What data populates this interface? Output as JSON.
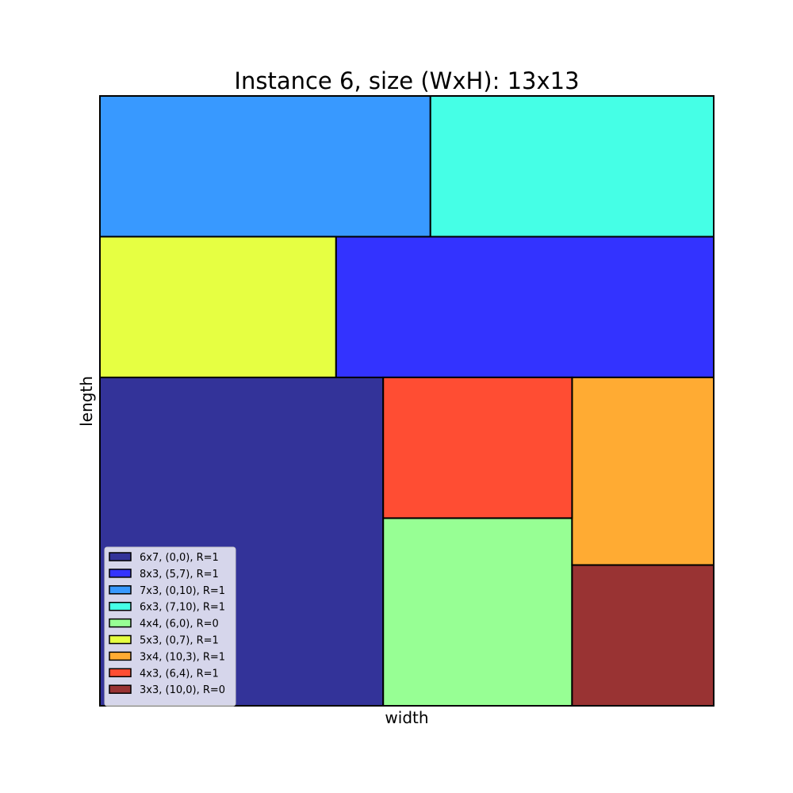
{
  "chart_data": {
    "type": "packing",
    "title": "Instance 6, size (WxH): 13x13",
    "xlabel": "width",
    "ylabel": "length",
    "xlim": [
      0,
      13
    ],
    "ylim": [
      0,
      13
    ],
    "grid": false,
    "legend_position": "lower-left",
    "rectangles": [
      {
        "label": "6x7, (0,0), R=1",
        "x": 0,
        "y": 0,
        "w": 6,
        "h": 7,
        "color": "#333399"
      },
      {
        "label": "8x3, (5,7), R=1",
        "x": 5,
        "y": 7,
        "w": 8,
        "h": 3,
        "color": "#3333ff"
      },
      {
        "label": "7x3, (0,10), R=1",
        "x": 0,
        "y": 10,
        "w": 7,
        "h": 3,
        "color": "#3899ff"
      },
      {
        "label": "6x3, (7,10), R=1",
        "x": 7,
        "y": 10,
        "w": 6,
        "h": 3,
        "color": "#45ffe6"
      },
      {
        "label": "4x4, (6,0), R=0",
        "x": 6,
        "y": 0,
        "w": 4,
        "h": 4,
        "color": "#97ff94"
      },
      {
        "label": "5x3, (0,7), R=1",
        "x": 0,
        "y": 7,
        "w": 5,
        "h": 3,
        "color": "#e6ff42"
      },
      {
        "label": "3x4, (10,3), R=1",
        "x": 10,
        "y": 3,
        "w": 3,
        "h": 4,
        "color": "#ffab33"
      },
      {
        "label": "4x3, (6,4), R=1",
        "x": 6,
        "y": 4,
        "w": 4,
        "h": 3,
        "color": "#ff4d33"
      },
      {
        "label": "3x3, (10,0), R=0",
        "x": 10,
        "y": 0,
        "w": 3,
        "h": 3,
        "color": "#993333"
      }
    ]
  }
}
